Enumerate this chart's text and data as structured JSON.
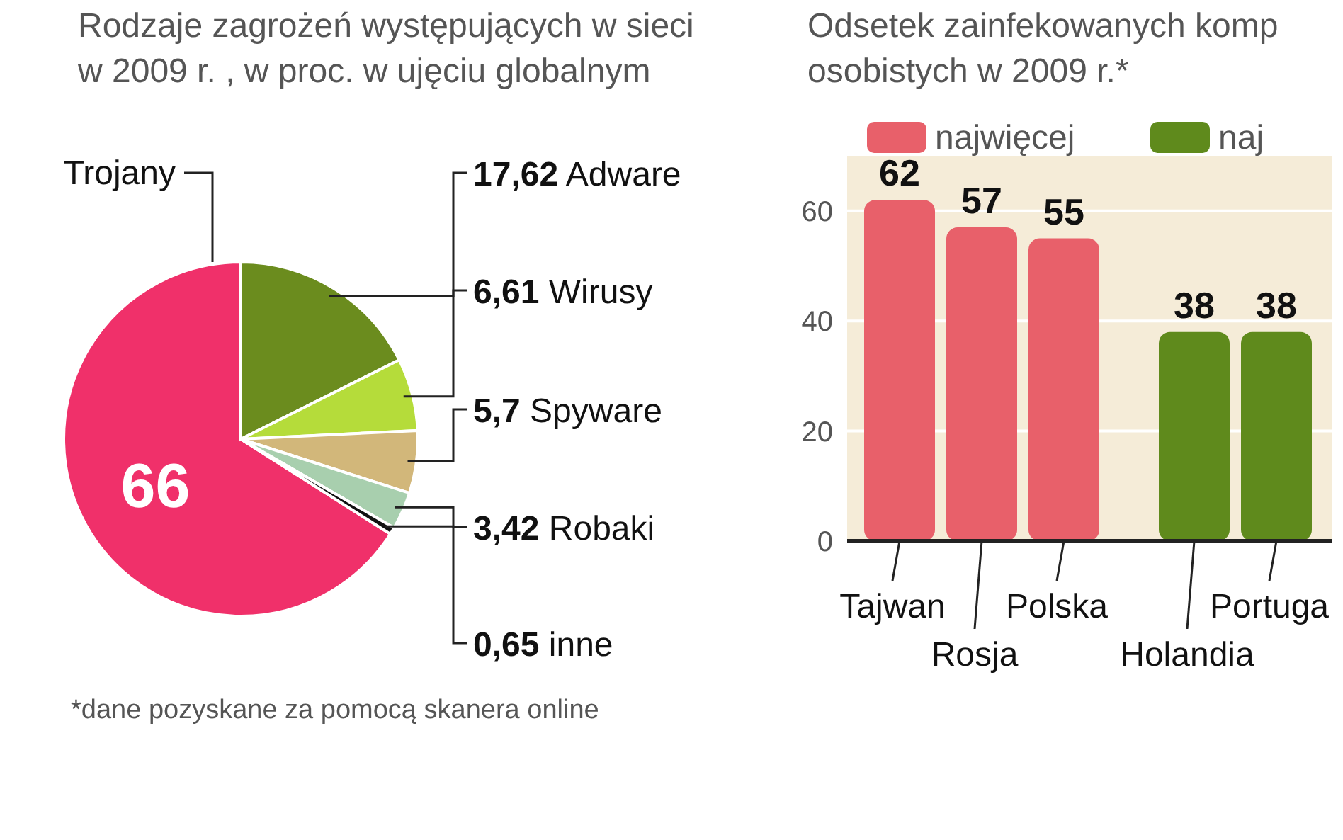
{
  "chart_data": [
    {
      "type": "pie",
      "title": "Rodzaje zagrożeń występujących w sieci\nw 2009 r. , w proc. w ujęciu globalnym",
      "categories": [
        "Trojany",
        "Adware",
        "Wirusy",
        "Spyware",
        "Robaki",
        "inne"
      ],
      "values": [
        66,
        17.62,
        6.61,
        5.7,
        3.42,
        0.65
      ],
      "colors": [
        "#f0306a",
        "#6b8c1e",
        "#b5dc3a",
        "#d2b77a",
        "#a8cfae",
        "#111111"
      ],
      "value_labels": [
        "66",
        "17,62",
        "6,61",
        "5,7",
        "3,42",
        "0,65"
      ]
    },
    {
      "type": "bar",
      "title": "Odsetek zainfekowanych komp\nosobistych w 2009 r.*",
      "categories": [
        "Tajwan",
        "Rosja",
        "Polska",
        "Holandia",
        "Portuga"
      ],
      "series": [
        {
          "name": "najwięcej",
          "color": "#e8606a",
          "values": [
            62,
            57,
            55,
            null,
            null
          ]
        },
        {
          "name": "naj",
          "color": "#5f8a1c",
          "values": [
            null,
            null,
            null,
            38,
            38
          ]
        }
      ],
      "ylim": [
        0,
        70
      ],
      "yticks": [
        0,
        20,
        40,
        60
      ],
      "grid": "y",
      "data_labels": true,
      "legend": "top left",
      "annotations": [
        "*dane pozyskane za pomocą skanera online"
      ]
    }
  ]
}
